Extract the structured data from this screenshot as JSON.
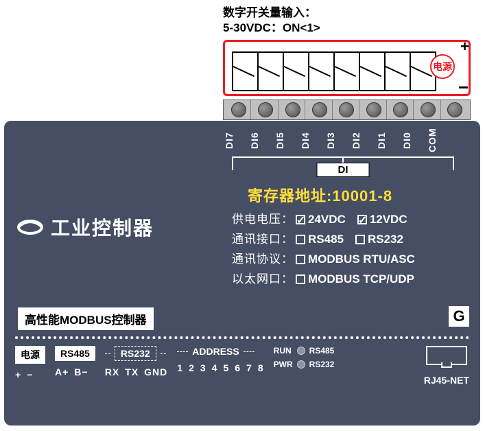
{
  "colors": {
    "card_bg": "#464e64",
    "accent_red": "#ed1c24",
    "accent_yellow": "#ffde3b",
    "screw_strip_bg": "#c0c0c0",
    "text_light": "#ffffff",
    "text_dark": "#000000"
  },
  "header": {
    "line1": "数字开关量输入：",
    "line2": "5-30VDC：ON<1>"
  },
  "terminal": {
    "plus": "+",
    "minus": "−",
    "power_label": "电源",
    "switch_count": 8
  },
  "screw_row": {
    "count": 9
  },
  "di": {
    "labels": [
      "DI7",
      "DI6",
      "DI5",
      "DI4",
      "DI3",
      "DI2",
      "DI1",
      "DI0",
      "COM"
    ],
    "group_label": "DI"
  },
  "register": {
    "text": "寄存器地址:10001-8"
  },
  "brand": {
    "title": "工业控制器"
  },
  "specs": {
    "rows": [
      {
        "label": "供电电压：",
        "opts": [
          {
            "mark": "check",
            "text": "24VDC"
          },
          {
            "mark": "check",
            "text": "12VDC"
          }
        ]
      },
      {
        "label": "通讯接口：",
        "opts": [
          {
            "mark": "box",
            "text": "RS485"
          },
          {
            "mark": "box",
            "text": "RS232"
          }
        ]
      },
      {
        "label": "通讯协议：",
        "opts": [
          {
            "mark": "box",
            "text": "MODBUS RTU/ASC"
          }
        ]
      },
      {
        "label": "以太网口：",
        "opts": [
          {
            "mark": "box",
            "text": "MODBUS TCP/UDP"
          }
        ]
      }
    ]
  },
  "subtitle": "高性能MODBUS控制器",
  "g_label": "G",
  "bottom": {
    "power": {
      "title": "电源",
      "sub": [
        "+",
        "−"
      ]
    },
    "rs485": {
      "title": "RS485",
      "sub": [
        "A+",
        "B−"
      ]
    },
    "rs232": {
      "title": "RS232",
      "sub": [
        "RX",
        "TX",
        "GND"
      ]
    },
    "address": {
      "title": "ADDRESS",
      "nums": [
        "1",
        "2",
        "3",
        "4",
        "5",
        "6",
        "7",
        "8"
      ]
    },
    "leds": {
      "tl": "RUN",
      "tr": "RS485",
      "bl": "PWR",
      "br": "RS232"
    },
    "rj45": {
      "label": "RJ45-NET"
    }
  }
}
